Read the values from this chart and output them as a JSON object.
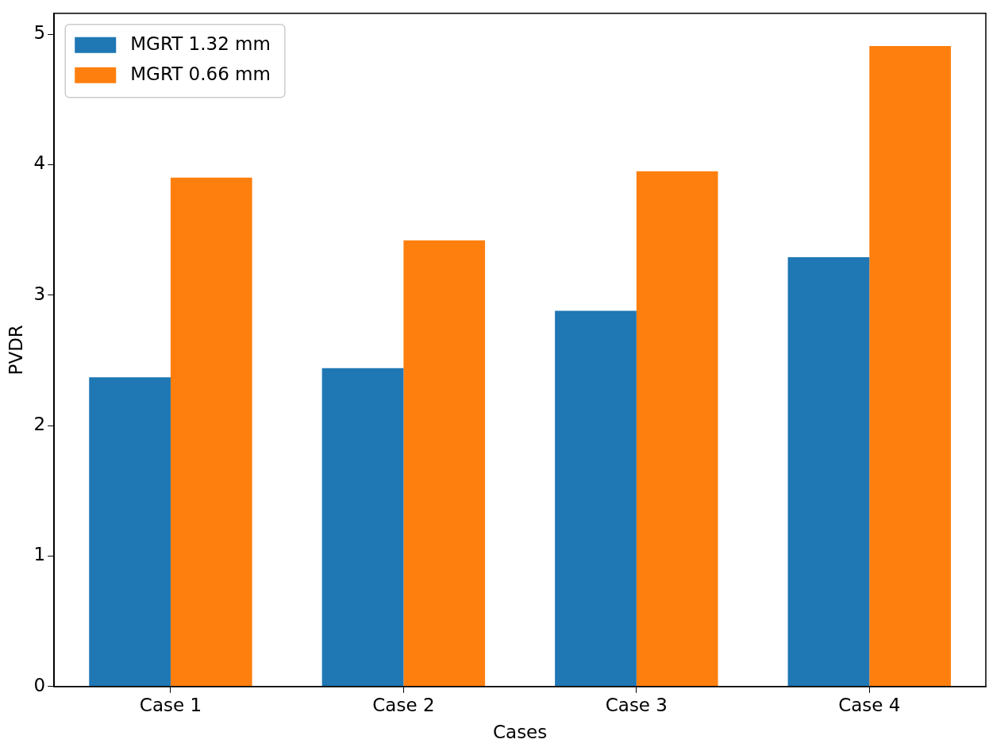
{
  "chart_data": {
    "type": "bar",
    "xlabel": "Cases",
    "ylabel": "PVDR",
    "categories": [
      "Case 1",
      "Case 2",
      "Case 3",
      "Case 4"
    ],
    "series": [
      {
        "name": "MGRT 1.32 mm",
        "color": "#1f77b4",
        "values": [
          2.37,
          2.44,
          2.88,
          3.29
        ]
      },
      {
        "name": "MGRT 0.66 mm",
        "color": "#ff7f0e",
        "values": [
          3.9,
          3.42,
          3.95,
          4.91
        ]
      }
    ],
    "ylim": [
      0,
      5.16
    ],
    "yticks": [
      0,
      1,
      2,
      3,
      4,
      5
    ],
    "grid": false,
    "legend": "top left"
  }
}
